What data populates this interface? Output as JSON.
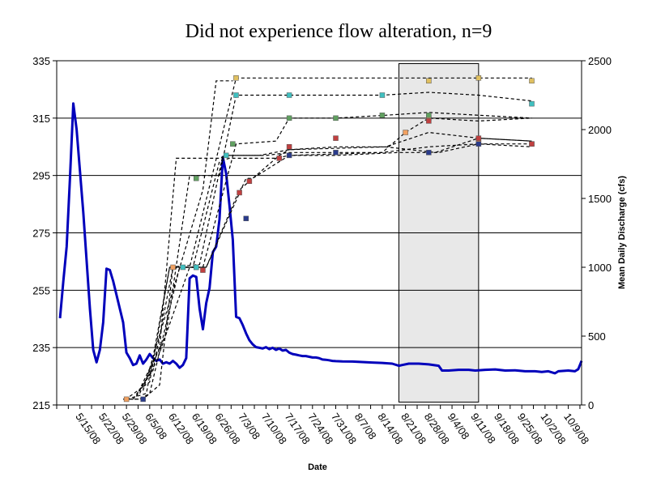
{
  "chart_data": {
    "type": "line",
    "title": "Did not experience flow alteration, n=9",
    "xlabel": "Date",
    "ylabel_left": "",
    "ylabel_right": "Mean Daily Discharge (cfs)",
    "ylim_left": [
      215,
      335
    ],
    "ylim_right": [
      0,
      2500
    ],
    "yticks_left": [
      215,
      235,
      255,
      275,
      295,
      315,
      335
    ],
    "yticks_right": [
      0,
      500,
      1000,
      1500,
      2000,
      2500
    ],
    "x_tick_labels": [
      "5/15/08",
      "5/22/08",
      "5/29/08",
      "6/5/08",
      "6/12/08",
      "6/19/08",
      "6/26/08",
      "7/3/08",
      "7/10/08",
      "7/17/08",
      "7/24/08",
      "7/31/08",
      "8/7/08",
      "8/14/08",
      "8/21/08",
      "8/28/08",
      "9/4/08",
      "9/11/08",
      "9/18/08",
      "9/25/08",
      "10/2/08",
      "10/9/08"
    ],
    "xlim": [
      "2008-05-08",
      "2008-10-13"
    ],
    "grid": "horizontal",
    "legend": "none",
    "shaded_region": {
      "start": "2008-08-19",
      "end": "2008-09-12",
      "color": "#e8e8e8"
    },
    "discharge_series": {
      "color": "#0000bb",
      "axis": "right",
      "points": [
        [
          "2008-05-09",
          630
        ],
        [
          "2008-05-10",
          900
        ],
        [
          "2008-05-11",
          1150
        ],
        [
          "2008-05-12",
          1650
        ],
        [
          "2008-05-13",
          2190
        ],
        [
          "2008-05-14",
          2000
        ],
        [
          "2008-05-15",
          1700
        ],
        [
          "2008-05-16",
          1400
        ],
        [
          "2008-05-17",
          1050
        ],
        [
          "2008-05-18",
          700
        ],
        [
          "2008-05-19",
          400
        ],
        [
          "2008-05-20",
          310
        ],
        [
          "2008-05-21",
          400
        ],
        [
          "2008-05-22",
          600
        ],
        [
          "2008-05-23",
          990
        ],
        [
          "2008-05-24",
          980
        ],
        [
          "2008-05-25",
          900
        ],
        [
          "2008-05-26",
          800
        ],
        [
          "2008-05-27",
          700
        ],
        [
          "2008-05-28",
          600
        ],
        [
          "2008-05-29",
          380
        ],
        [
          "2008-05-30",
          340
        ],
        [
          "2008-05-31",
          290
        ],
        [
          "2008-06-01",
          300
        ],
        [
          "2008-06-02",
          360
        ],
        [
          "2008-06-03",
          300
        ],
        [
          "2008-06-04",
          330
        ],
        [
          "2008-06-05",
          370
        ],
        [
          "2008-06-06",
          340
        ],
        [
          "2008-06-07",
          320
        ],
        [
          "2008-06-08",
          330
        ],
        [
          "2008-06-09",
          300
        ],
        [
          "2008-06-10",
          310
        ],
        [
          "2008-06-11",
          300
        ],
        [
          "2008-06-12",
          320
        ],
        [
          "2008-06-13",
          300
        ],
        [
          "2008-06-14",
          270
        ],
        [
          "2008-06-15",
          290
        ],
        [
          "2008-06-16",
          340
        ],
        [
          "2008-06-17",
          920
        ],
        [
          "2008-06-18",
          940
        ],
        [
          "2008-06-19",
          930
        ],
        [
          "2008-06-20",
          700
        ],
        [
          "2008-06-21",
          550
        ],
        [
          "2008-06-22",
          740
        ],
        [
          "2008-06-23",
          850
        ],
        [
          "2008-06-24",
          1110
        ],
        [
          "2008-06-25",
          1150
        ],
        [
          "2008-06-26",
          1350
        ],
        [
          "2008-06-27",
          1800
        ],
        [
          "2008-06-28",
          1680
        ],
        [
          "2008-06-29",
          1450
        ],
        [
          "2008-06-30",
          1200
        ],
        [
          "2008-07-01",
          640
        ],
        [
          "2008-07-02",
          630
        ],
        [
          "2008-07-03",
          580
        ],
        [
          "2008-07-04",
          520
        ],
        [
          "2008-07-05",
          470
        ],
        [
          "2008-07-06",
          440
        ],
        [
          "2008-07-07",
          420
        ],
        [
          "2008-07-08",
          415
        ],
        [
          "2008-07-09",
          410
        ],
        [
          "2008-07-10",
          420
        ],
        [
          "2008-07-11",
          405
        ],
        [
          "2008-07-12",
          415
        ],
        [
          "2008-07-13",
          400
        ],
        [
          "2008-07-14",
          410
        ],
        [
          "2008-07-15",
          395
        ],
        [
          "2008-07-16",
          400
        ],
        [
          "2008-07-17",
          380
        ],
        [
          "2008-07-18",
          370
        ],
        [
          "2008-07-19",
          365
        ],
        [
          "2008-07-20",
          360
        ],
        [
          "2008-07-21",
          355
        ],
        [
          "2008-07-22",
          355
        ],
        [
          "2008-07-23",
          350
        ],
        [
          "2008-07-24",
          345
        ],
        [
          "2008-07-25",
          345
        ],
        [
          "2008-07-26",
          340
        ],
        [
          "2008-07-27",
          330
        ],
        [
          "2008-07-28",
          328
        ],
        [
          "2008-07-29",
          325
        ],
        [
          "2008-07-30",
          320
        ],
        [
          "2008-07-31",
          318
        ],
        [
          "2008-08-02",
          316
        ],
        [
          "2008-08-05",
          315
        ],
        [
          "2008-08-08",
          312
        ],
        [
          "2008-08-11",
          308
        ],
        [
          "2008-08-14",
          305
        ],
        [
          "2008-08-17",
          300
        ],
        [
          "2008-08-19",
          285
        ],
        [
          "2008-08-20",
          290
        ],
        [
          "2008-08-22",
          300
        ],
        [
          "2008-08-25",
          300
        ],
        [
          "2008-08-28",
          295
        ],
        [
          "2008-08-31",
          285
        ],
        [
          "2008-09-01",
          250
        ],
        [
          "2008-09-03",
          250
        ],
        [
          "2008-09-06",
          255
        ],
        [
          "2008-09-09",
          255
        ],
        [
          "2008-09-11",
          250
        ],
        [
          "2008-09-14",
          255
        ],
        [
          "2008-09-17",
          258
        ],
        [
          "2008-09-20",
          250
        ],
        [
          "2008-09-23",
          252
        ],
        [
          "2008-09-26",
          245
        ],
        [
          "2008-09-29",
          245
        ],
        [
          "2008-10-01",
          240
        ],
        [
          "2008-10-03",
          245
        ],
        [
          "2008-10-05",
          230
        ],
        [
          "2008-10-06",
          245
        ],
        [
          "2008-10-09",
          250
        ],
        [
          "2008-10-11",
          245
        ],
        [
          "2008-10-12",
          260
        ],
        [
          "2008-10-13",
          320
        ]
      ]
    },
    "track_series": [
      {
        "color": "#000000",
        "points": [
          [
            "2008-05-28",
            217
          ],
          [
            "2008-06-02",
            217
          ],
          [
            "2008-06-05",
            219
          ],
          [
            "2008-06-14",
            263
          ],
          [
            "2008-06-21",
            263
          ],
          [
            "2008-06-22",
            263
          ],
          [
            "2008-07-04",
            294
          ],
          [
            "2008-07-06",
            294
          ],
          [
            "2008-07-17",
            302
          ],
          [
            "2008-07-31",
            302
          ],
          [
            "2008-08-19",
            303
          ],
          [
            "2008-08-31",
            303
          ],
          [
            "2008-09-12",
            306
          ],
          [
            "2008-09-28",
            306
          ]
        ]
      },
      {
        "color": "#000000",
        "points": [
          [
            "2008-05-30",
            217
          ],
          [
            "2008-06-03",
            217
          ],
          [
            "2008-06-08",
            222
          ],
          [
            "2008-06-12",
            263
          ],
          [
            "2008-06-22",
            263
          ],
          [
            "2008-07-02",
            290
          ],
          [
            "2008-07-05",
            293
          ],
          [
            "2008-07-14",
            302
          ],
          [
            "2008-07-17",
            304
          ],
          [
            "2008-07-31",
            305
          ],
          [
            "2008-08-15",
            305
          ],
          [
            "2008-08-30",
            303
          ],
          [
            "2008-09-12",
            308
          ],
          [
            "2008-09-28",
            307
          ]
        ]
      },
      {
        "color": "#000000",
        "points": [
          [
            "2008-05-29",
            217
          ],
          [
            "2008-06-04",
            219
          ],
          [
            "2008-06-11",
            263
          ],
          [
            "2008-06-18",
            263
          ],
          [
            "2008-06-26",
            300
          ],
          [
            "2008-06-29",
            301
          ],
          [
            "2008-07-13",
            301
          ],
          [
            "2008-07-17",
            302
          ],
          [
            "2008-08-14",
            303
          ],
          [
            "2008-08-21",
            310
          ],
          [
            "2008-08-28",
            315
          ],
          [
            "2008-09-12",
            314
          ],
          [
            "2008-09-28",
            315
          ]
        ]
      },
      {
        "color": "#000000",
        "points": [
          [
            "2008-05-30",
            218
          ],
          [
            "2008-06-05",
            223
          ],
          [
            "2008-06-11",
            263
          ],
          [
            "2008-06-20",
            264
          ],
          [
            "2008-06-27",
            302
          ],
          [
            "2008-07-08",
            302
          ],
          [
            "2008-07-17",
            304
          ],
          [
            "2008-08-15",
            305
          ],
          [
            "2008-08-28",
            310
          ],
          [
            "2008-09-12",
            308
          ],
          [
            "2008-09-28",
            307
          ]
        ]
      },
      {
        "color": "#000000",
        "points": [
          [
            "2008-05-31",
            217
          ],
          [
            "2008-06-06",
            227
          ],
          [
            "2008-06-12",
            263
          ],
          [
            "2008-06-21",
            263
          ],
          [
            "2008-07-01",
            306
          ],
          [
            "2008-07-13",
            307
          ],
          [
            "2008-07-17",
            315
          ],
          [
            "2008-07-31",
            315
          ],
          [
            "2008-08-15",
            316
          ],
          [
            "2008-08-28",
            317
          ],
          [
            "2008-09-12",
            316
          ],
          [
            "2008-09-28",
            315
          ]
        ]
      },
      {
        "color": "#000000",
        "points": [
          [
            "2008-06-01",
            218
          ],
          [
            "2008-06-08",
            235
          ],
          [
            "2008-06-13",
            301
          ],
          [
            "2008-06-26",
            301
          ],
          [
            "2008-06-28",
            302
          ],
          [
            "2008-07-10",
            302
          ],
          [
            "2008-07-17",
            303
          ],
          [
            "2008-08-14",
            303
          ],
          [
            "2008-08-28",
            305
          ],
          [
            "2008-09-12",
            306
          ],
          [
            "2008-09-28",
            305
          ]
        ]
      },
      {
        "color": "#000000",
        "points": [
          [
            "2008-06-02",
            219
          ],
          [
            "2008-06-10",
            240
          ],
          [
            "2008-06-17",
            295
          ],
          [
            "2008-06-26",
            295
          ],
          [
            "2008-07-01",
            323
          ],
          [
            "2008-07-17",
            323
          ],
          [
            "2008-08-14",
            323
          ],
          [
            "2008-08-28",
            324
          ],
          [
            "2008-09-12",
            323
          ],
          [
            "2008-09-28",
            321
          ]
        ]
      },
      {
        "color": "#000000",
        "points": [
          [
            "2008-06-03",
            220
          ],
          [
            "2008-06-12",
            255
          ],
          [
            "2008-06-21",
            290
          ],
          [
            "2008-06-25",
            328
          ],
          [
            "2008-06-30",
            328
          ]
        ]
      },
      {
        "color": "#000000",
        "points": [
          [
            "2008-06-01",
            218
          ],
          [
            "2008-06-07",
            230
          ],
          [
            "2008-06-17",
            263
          ],
          [
            "2008-07-01",
            329
          ],
          [
            "2008-07-10",
            329
          ],
          [
            "2008-08-14",
            329
          ],
          [
            "2008-08-28",
            329
          ],
          [
            "2008-09-12",
            329
          ],
          [
            "2008-09-28",
            329
          ]
        ]
      }
    ],
    "markers": [
      {
        "color": "#f0a060",
        "points": [
          [
            "2008-05-29",
            217
          ],
          [
            "2008-06-12",
            263
          ],
          [
            "2008-06-19",
            263
          ],
          [
            "2008-08-21",
            310
          ],
          [
            "2008-08-28",
            315
          ],
          [
            "2008-09-12",
            307
          ]
        ]
      },
      {
        "color": "#2b3c8c",
        "points": [
          [
            "2008-06-03",
            217
          ],
          [
            "2008-07-04",
            280
          ],
          [
            "2008-07-17",
            302
          ],
          [
            "2008-07-31",
            303
          ],
          [
            "2008-08-28",
            303
          ],
          [
            "2008-09-12",
            306
          ],
          [
            "2008-09-28",
            306
          ]
        ]
      },
      {
        "color": "#c04040",
        "points": [
          [
            "2008-06-21",
            262
          ],
          [
            "2008-07-02",
            289
          ],
          [
            "2008-07-05",
            293
          ],
          [
            "2008-07-14",
            301
          ],
          [
            "2008-07-17",
            305
          ],
          [
            "2008-07-31",
            308
          ],
          [
            "2008-08-28",
            314
          ],
          [
            "2008-09-12",
            308
          ],
          [
            "2008-09-28",
            306
          ]
        ]
      },
      {
        "color": "#40c0c0",
        "points": [
          [
            "2008-06-15",
            263
          ],
          [
            "2008-06-19",
            263
          ],
          [
            "2008-06-28",
            302
          ],
          [
            "2008-07-01",
            323
          ],
          [
            "2008-07-17",
            323
          ],
          [
            "2008-08-14",
            323
          ],
          [
            "2008-09-28",
            320
          ]
        ]
      },
      {
        "color": "#60a060",
        "points": [
          [
            "2008-06-19",
            294
          ],
          [
            "2008-06-30",
            306
          ],
          [
            "2008-07-17",
            315
          ],
          [
            "2008-07-31",
            315
          ],
          [
            "2008-08-14",
            316
          ],
          [
            "2008-08-28",
            316
          ]
        ]
      },
      {
        "color": "#e0c060",
        "points": [
          [
            "2008-07-01",
            329
          ],
          [
            "2008-08-28",
            328
          ],
          [
            "2008-09-12",
            329
          ],
          [
            "2008-09-28",
            328
          ]
        ]
      }
    ]
  }
}
